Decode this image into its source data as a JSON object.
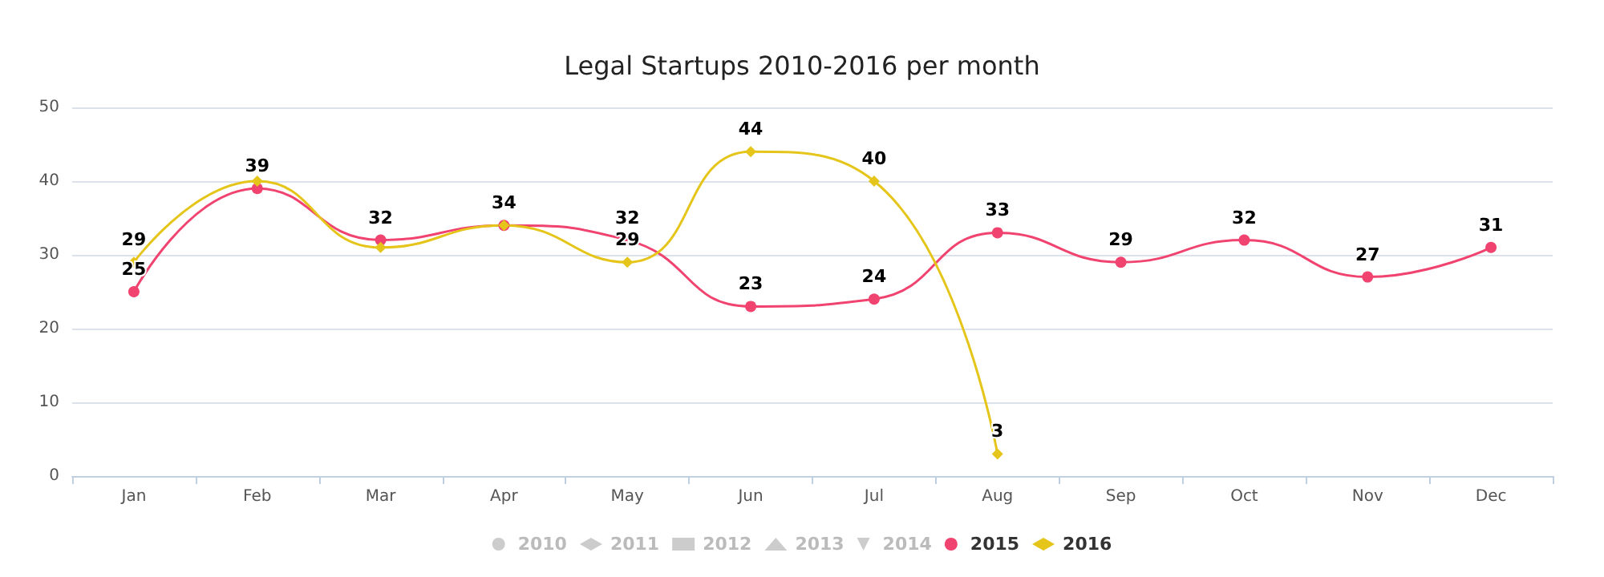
{
  "chart_data": {
    "type": "line",
    "title": "Legal Startups 2010-2016 per month",
    "categories": [
      "Jan",
      "Feb",
      "Mar",
      "Apr",
      "May",
      "Jun",
      "Jul",
      "Aug",
      "Sep",
      "Oct",
      "Nov",
      "Dec"
    ],
    "series": [
      {
        "name": "2010",
        "color": "#cccccc",
        "marker": "circle",
        "values": [
          null,
          null,
          null,
          null,
          null,
          null,
          null,
          null,
          null,
          null,
          null,
          null
        ]
      },
      {
        "name": "2011",
        "color": "#cccccc",
        "marker": "diamond",
        "values": [
          null,
          null,
          null,
          null,
          null,
          null,
          null,
          null,
          null,
          null,
          null,
          null
        ]
      },
      {
        "name": "2012",
        "color": "#cccccc",
        "marker": "square",
        "values": [
          null,
          null,
          null,
          null,
          null,
          null,
          null,
          null,
          null,
          null,
          null,
          null
        ]
      },
      {
        "name": "2013",
        "color": "#cccccc",
        "marker": "triangle",
        "values": [
          null,
          null,
          null,
          null,
          null,
          null,
          null,
          null,
          null,
          null,
          null,
          null
        ]
      },
      {
        "name": "2014",
        "color": "#cccccc",
        "marker": "triangle-down",
        "values": [
          null,
          null,
          null,
          null,
          null,
          null,
          null,
          null,
          null,
          null,
          null,
          null
        ]
      },
      {
        "name": "2015",
        "color": "#f0436f",
        "marker": "circle",
        "values": [
          25,
          39,
          32,
          34,
          32,
          23,
          24,
          33,
          29,
          32,
          27,
          31
        ],
        "value_labels": [
          "25",
          "39",
          "32",
          "34",
          "32",
          "23",
          "24",
          "33",
          "29",
          "32",
          "27",
          "31"
        ]
      },
      {
        "name": "2016",
        "color": "#e5c51a",
        "marker": "diamond",
        "values": [
          29,
          40,
          31,
          34,
          29,
          44,
          40,
          3,
          null,
          null,
          null,
          null
        ],
        "value_labels": [
          "29",
          null,
          null,
          null,
          "29",
          "44",
          "40",
          "3",
          null,
          null,
          null,
          null
        ]
      }
    ],
    "ylim": [
      0,
      50
    ],
    "yticks": [
      0,
      10,
      20,
      30,
      40,
      50
    ],
    "grid": "y",
    "legend": "bottom"
  }
}
